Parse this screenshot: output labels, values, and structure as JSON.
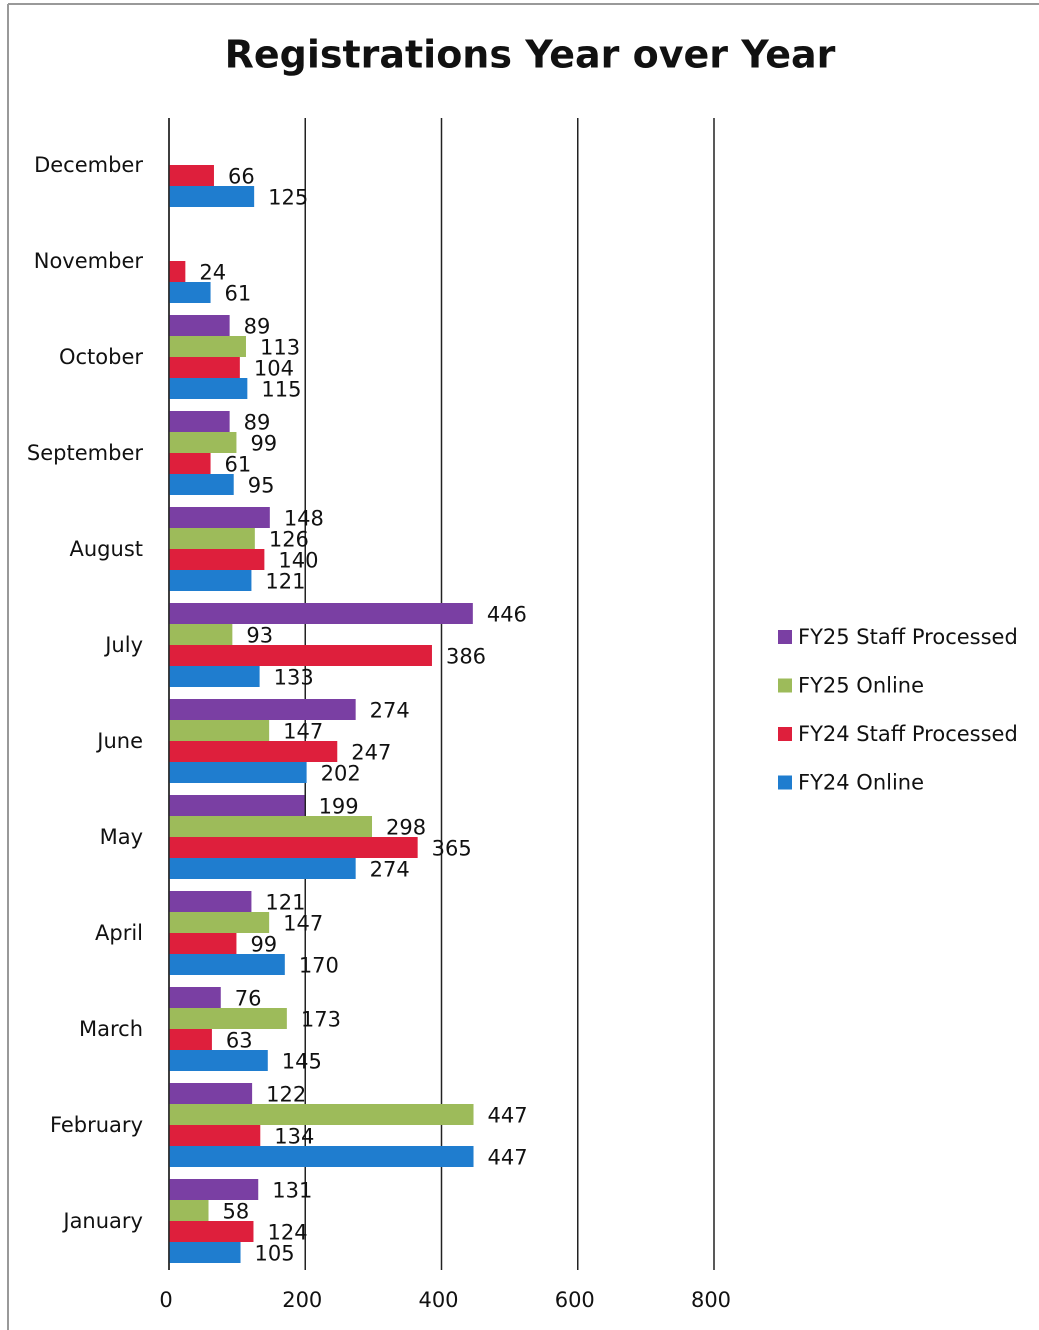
{
  "chart_data": {
    "type": "bar",
    "orientation": "horizontal",
    "title": "Registrations Year over Year",
    "categories": [
      "January",
      "February",
      "March",
      "April",
      "May",
      "June",
      "July",
      "August",
      "September",
      "October",
      "November",
      "December"
    ],
    "series": [
      {
        "name": "FY25 Staff Processed",
        "color": "#7a3fa3",
        "values": [
          131,
          122,
          76,
          121,
          199,
          274,
          446,
          148,
          89,
          89,
          null,
          null
        ]
      },
      {
        "name": "FY25 Online",
        "color": "#9dbb5a",
        "values": [
          58,
          447,
          173,
          147,
          298,
          147,
          93,
          126,
          99,
          113,
          null,
          null
        ]
      },
      {
        "name": "FY24 Staff Processed",
        "color": "#de1f3c",
        "values": [
          124,
          134,
          63,
          99,
          365,
          247,
          386,
          140,
          61,
          104,
          24,
          66
        ]
      },
      {
        "name": "FY24 Online",
        "color": "#1f7dcf",
        "values": [
          105,
          447,
          145,
          170,
          274,
          202,
          133,
          121,
          95,
          115,
          61,
          125
        ]
      }
    ],
    "xlim": [
      0,
      800
    ],
    "xticks": [
      0,
      200,
      400,
      600,
      800
    ],
    "grid": true,
    "legend": "right"
  }
}
